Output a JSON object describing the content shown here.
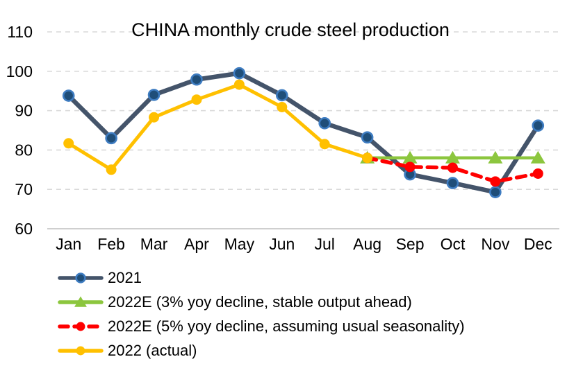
{
  "chart_data": {
    "type": "line",
    "title": "CHINA monthly crude steel production",
    "categories": [
      "Jan",
      "Feb",
      "Mar",
      "Apr",
      "May",
      "Jun",
      "Jul",
      "Aug",
      "Sep",
      "Oct",
      "Nov",
      "Dec"
    ],
    "ylabel": "",
    "xlabel": "",
    "ylim": [
      60,
      110
    ],
    "yticks": [
      60,
      70,
      80,
      90,
      100,
      110
    ],
    "grid": "horizontal dashed gridlines, solid baseline at 60",
    "legend_position": "bottom-left",
    "colors": {
      "gridline": "#D9D9D9",
      "baseline": "#BFBFBF",
      "axis_text": "#000000"
    },
    "series": [
      {
        "name": "2021",
        "color": "#44546A",
        "marker": "circle",
        "marker_fill": "#1F4E79",
        "marker_stroke": "#3E7CC1",
        "dash": "solid",
        "values": [
          93.8,
          83.0,
          94.0,
          97.9,
          99.5,
          93.9,
          86.8,
          83.2,
          73.8,
          71.6,
          69.3,
          86.2
        ]
      },
      {
        "name": "2022E (3% yoy decline, stable output ahead)",
        "color": "#8CC63E",
        "marker": "triangle",
        "marker_fill": "#8CC63E",
        "marker_stroke": "#8CC63E",
        "dash": "solid",
        "values": [
          null,
          null,
          null,
          null,
          null,
          null,
          null,
          78,
          78,
          78,
          78,
          78
        ]
      },
      {
        "name": "2022E (5% yoy decline, assuming usual seasonality)",
        "color": "#FF0000",
        "marker": "circle",
        "marker_fill": "#FF0000",
        "marker_stroke": "#FF0000",
        "dash": "dashed",
        "values": [
          null,
          null,
          null,
          null,
          null,
          null,
          null,
          78,
          75.7,
          75.5,
          72.0,
          74.0
        ]
      },
      {
        "name": "2022 (actual)",
        "color": "#FFC000",
        "marker": "circle",
        "marker_fill": "#FFC000",
        "marker_stroke": "#FFC000",
        "dash": "solid",
        "values": [
          81.7,
          75.0,
          88.3,
          92.8,
          96.6,
          90.9,
          81.5,
          78.0,
          null,
          null,
          null,
          null
        ]
      }
    ]
  }
}
